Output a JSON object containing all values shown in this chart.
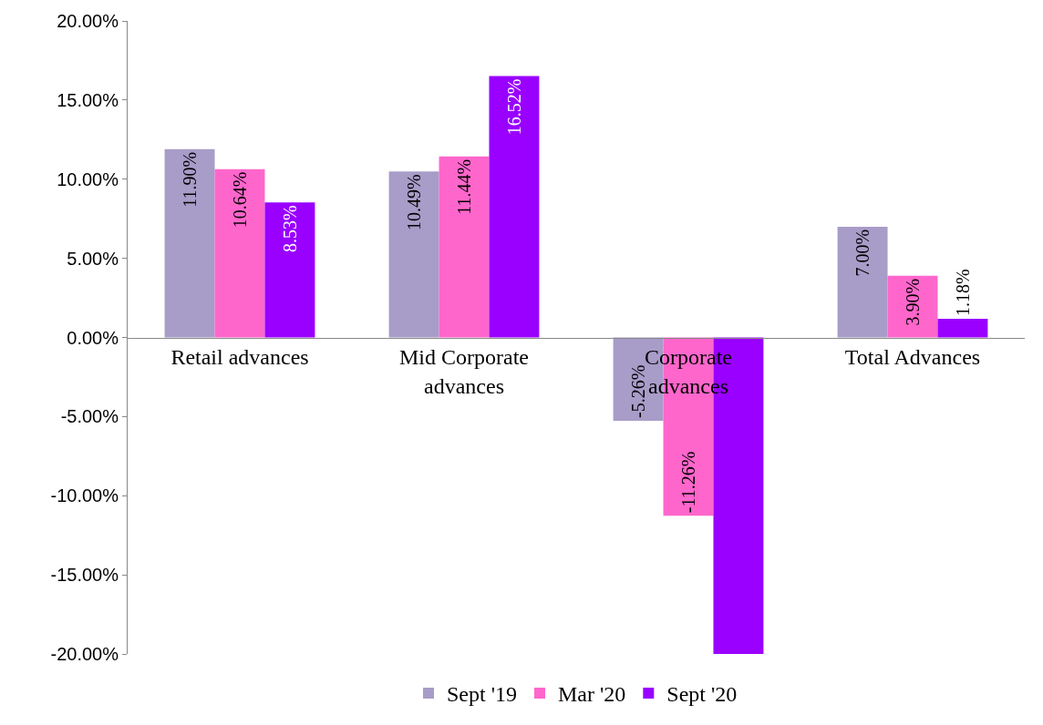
{
  "chart_data": {
    "type": "bar",
    "categories": [
      "Retail advances",
      "Mid Corporate advances",
      "Corporate advances",
      "Total Advances"
    ],
    "series": [
      {
        "name": "Sept '19",
        "color": "#a89cc8",
        "values": [
          11.9,
          10.49,
          -5.26,
          7.0
        ],
        "value_labels": [
          "11.90%",
          "10.49%",
          "-5.26%",
          "7.00%"
        ]
      },
      {
        "name": "Mar '20",
        "color": "#ff66cc",
        "values": [
          10.64,
          11.44,
          -11.26,
          3.9
        ],
        "value_labels": [
          "10.64%",
          "11.44%",
          "-11.26%",
          "3.90%"
        ]
      },
      {
        "name": "Sept '20",
        "color": "#9900ff",
        "values": [
          8.53,
          16.52,
          -20,
          1.18
        ],
        "value_labels": [
          "8.53%",
          "16.52%",
          null,
          "1.18%"
        ]
      }
    ],
    "ylim": [
      -20,
      20
    ],
    "yticks": [
      {
        "value": -20,
        "label": "-20.00%"
      },
      {
        "value": -15,
        "label": "-15.00%"
      },
      {
        "value": -10,
        "label": "-10.00%"
      },
      {
        "value": -5,
        "label": "-5.00%"
      },
      {
        "value": 0,
        "label": "0.00%"
      },
      {
        "value": 5,
        "label": "5.00%"
      },
      {
        "value": 10,
        "label": "10.00%"
      },
      {
        "value": 15,
        "label": "15.00%"
      },
      {
        "value": 20,
        "label": "20.00%"
      }
    ],
    "legend": "bottom"
  }
}
